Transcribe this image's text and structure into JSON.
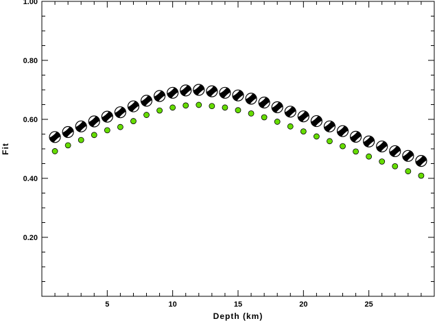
{
  "chart_data": {
    "type": "scatter",
    "title": "",
    "xlabel": "Depth (km)",
    "ylabel": "Fit",
    "xlim": [
      0,
      30
    ],
    "ylim": [
      0.0,
      1.0
    ],
    "x_ticks": [
      5,
      10,
      15,
      20,
      25
    ],
    "x_tick_labels": [
      "5",
      "10",
      "15",
      "20",
      "25"
    ],
    "y_ticks": [
      0.2,
      0.4,
      0.6,
      0.8,
      1.0
    ],
    "y_tick_labels": [
      "0.20",
      "0.40",
      "0.60",
      "0.80",
      "1.00"
    ],
    "grid": false,
    "series": [
      {
        "marker": "focal-mechanism beachball (black/white)",
        "color": "#000000",
        "x": [
          1,
          2,
          3,
          4,
          5,
          6,
          7,
          8,
          9,
          10,
          11,
          12,
          13,
          14,
          15,
          16,
          17,
          18,
          19,
          20,
          21,
          22,
          23,
          24,
          25,
          26,
          27,
          28,
          29
        ],
        "values": [
          0.54,
          0.557,
          0.576,
          0.593,
          0.609,
          0.624,
          0.644,
          0.663,
          0.679,
          0.69,
          0.698,
          0.7,
          0.695,
          0.69,
          0.681,
          0.67,
          0.657,
          0.641,
          0.626,
          0.61,
          0.594,
          0.576,
          0.56,
          0.541,
          0.525,
          0.508,
          0.492,
          0.476,
          0.459
        ]
      },
      {
        "marker": "filled circle",
        "color": "#66dd00",
        "x": [
          1,
          2,
          3,
          4,
          5,
          6,
          7,
          8,
          9,
          10,
          11,
          12,
          13,
          14,
          15,
          16,
          17,
          18,
          19,
          20,
          21,
          22,
          23,
          24,
          25,
          26,
          27,
          28,
          29
        ],
        "values": [
          0.492,
          0.512,
          0.53,
          0.547,
          0.563,
          0.574,
          0.594,
          0.615,
          0.63,
          0.64,
          0.647,
          0.649,
          0.645,
          0.64,
          0.631,
          0.62,
          0.607,
          0.592,
          0.576,
          0.559,
          0.542,
          0.526,
          0.509,
          0.491,
          0.474,
          0.457,
          0.441,
          0.424,
          0.409
        ]
      }
    ]
  }
}
